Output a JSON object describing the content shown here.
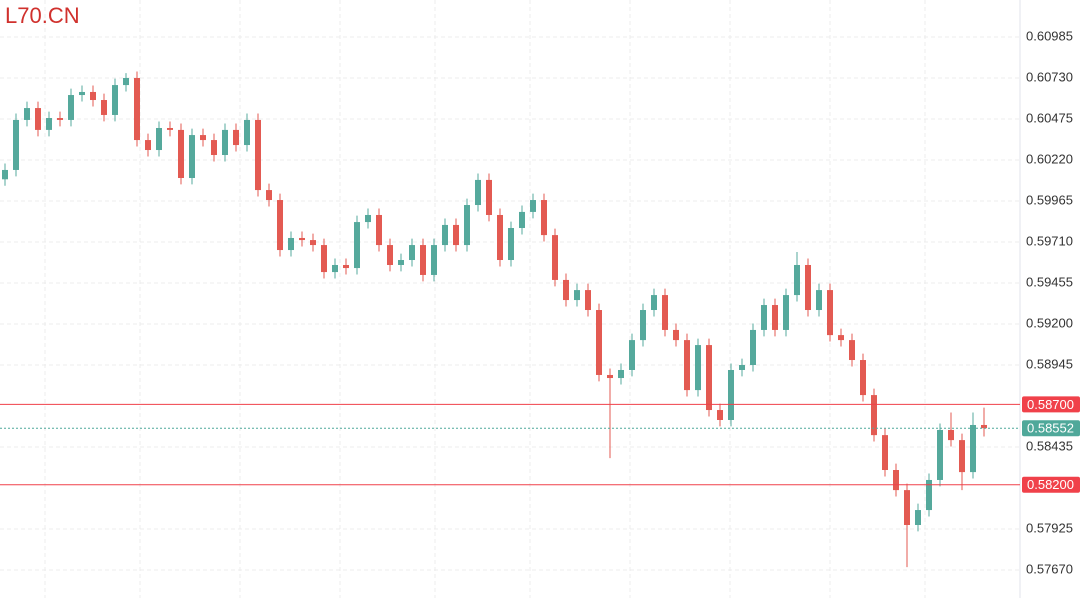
{
  "chart_data": {
    "type": "candlestick",
    "title": "L70.CN",
    "title_color": "#d0312d",
    "up_color": "#55a99c",
    "down_color": "#e35a52",
    "grid": true,
    "ylim": [
      0.57496,
      0.61215
    ],
    "yticks": [
      0.60985,
      {
        "value": 0.6073,
        "label": "0.60730"
      },
      0.60475,
      {
        "value": 0.6022,
        "label": "0.60220"
      },
      0.59965,
      {
        "value": 0.5971,
        "label": "0.59710"
      },
      0.59455,
      {
        "value": 0.592,
        "label": "0.59200"
      },
      0.58945,
      0.58435,
      0.57925,
      {
        "value": 0.5767,
        "label": "0.57670"
      }
    ],
    "hlines": [
      {
        "value": 0.587,
        "label": "0.58700",
        "color": "#f0414a",
        "style": "solid"
      },
      {
        "value": 0.58552,
        "color": "#4fa89a",
        "style": "dotted"
      },
      {
        "value": 0.582,
        "label": "0.58200",
        "color": "#f0414a",
        "style": "solid"
      }
    ],
    "open": [
      0.601,
      0.60158,
      0.60469,
      0.60543,
      0.60407,
      0.60481,
      0.60469,
      0.60624,
      0.60643,
      0.60593,
      0.605,
      0.60686,
      0.6073,
      0.60344,
      0.60282,
      0.60419,
      0.60407,
      0.60108,
      0.60375,
      0.60344,
      0.60251,
      0.60407,
      0.60313,
      0.60469,
      0.60033,
      0.59971,
      0.5966,
      0.59735,
      0.59722,
      0.59691,
      0.59523,
      0.59567,
      0.59548,
      0.59834,
      0.59878,
      0.59691,
      0.59567,
      0.59598,
      0.59691,
      0.59505,
      0.59691,
      0.59816,
      0.59691,
      0.5994,
      0.60096,
      0.59878,
      0.59598,
      0.59797,
      0.59897,
      0.59971,
      0.59753,
      0.59474,
      0.59349,
      0.59411,
      0.59287,
      0.58883,
      0.58864,
      0.58914,
      0.591,
      0.59287,
      0.5938,
      0.59163,
      0.591,
      0.58789,
      0.59069,
      0.58665,
      0.58603,
      0.58914,
      0.58945,
      0.59163,
      0.59318,
      0.59163,
      0.5938,
      0.59567,
      0.59287,
      0.59411,
      0.59131,
      0.591,
      0.58976,
      0.58758,
      0.58509,
      0.58292,
      0.58167,
      0.5795,
      0.58043,
      0.5823,
      0.58541,
      0.58478,
      0.58279,
      0.58572
    ],
    "high": [
      0.60198,
      0.60509,
      0.60583,
      0.60583,
      0.60521,
      0.60521,
      0.60664,
      0.60683,
      0.60683,
      0.60633,
      0.60726,
      0.6076,
      0.6077,
      0.60384,
      0.60459,
      0.60459,
      0.60447,
      0.60415,
      0.60415,
      0.60384,
      0.60447,
      0.60447,
      0.60509,
      0.60509,
      0.60073,
      0.60011,
      0.59775,
      0.59775,
      0.59762,
      0.59731,
      0.59607,
      0.59607,
      0.59874,
      0.59918,
      0.59918,
      0.59731,
      0.59638,
      0.59731,
      0.59731,
      0.59731,
      0.59856,
      0.59856,
      0.5998,
      0.60136,
      0.60136,
      0.59918,
      0.59837,
      0.59937,
      0.60011,
      0.60011,
      0.59793,
      0.59514,
      0.59451,
      0.59451,
      0.59327,
      0.58923,
      0.58954,
      0.5914,
      0.59327,
      0.5942,
      0.5942,
      0.59203,
      0.5914,
      0.59109,
      0.59109,
      0.58705,
      0.58954,
      0.58985,
      0.59203,
      0.59358,
      0.59358,
      0.5942,
      0.59648,
      0.59607,
      0.59451,
      0.59451,
      0.59171,
      0.5914,
      0.59016,
      0.58798,
      0.58549,
      0.58332,
      0.58207,
      0.58083,
      0.5827,
      0.58581,
      0.5865,
      0.58518,
      0.5865,
      0.5868
    ],
    "low": [
      0.6006,
      0.60118,
      0.60429,
      0.60367,
      0.60367,
      0.60429,
      0.60429,
      0.60584,
      0.60553,
      0.6046,
      0.6046,
      0.60646,
      0.60304,
      0.60242,
      0.60242,
      0.60367,
      0.60068,
      0.60068,
      0.60304,
      0.60211,
      0.60211,
      0.60273,
      0.60273,
      0.59993,
      0.59931,
      0.5962,
      0.5962,
      0.59682,
      0.59651,
      0.59483,
      0.59483,
      0.59508,
      0.59508,
      0.59794,
      0.59651,
      0.59527,
      0.59527,
      0.59558,
      0.59465,
      0.59465,
      0.59651,
      0.59651,
      0.59651,
      0.599,
      0.59838,
      0.59558,
      0.59558,
      0.59757,
      0.59857,
      0.59713,
      0.59434,
      0.59309,
      0.59309,
      0.59247,
      0.58843,
      0.58366,
      0.58824,
      0.58874,
      0.5906,
      0.59247,
      0.59123,
      0.5906,
      0.58749,
      0.58749,
      0.58625,
      0.58563,
      0.58563,
      0.58874,
      0.58905,
      0.59123,
      0.59123,
      0.59123,
      0.5934,
      0.59247,
      0.59247,
      0.59091,
      0.5906,
      0.58936,
      0.58718,
      0.58469,
      0.58252,
      0.58127,
      0.57688,
      0.5791,
      0.58003,
      0.5819,
      0.58438,
      0.58167,
      0.58239,
      0.585
    ],
    "close": [
      0.60158,
      0.60469,
      0.60543,
      0.60407,
      0.60481,
      0.60469,
      0.60624,
      0.60643,
      0.60593,
      0.605,
      0.60686,
      0.6073,
      0.60344,
      0.60282,
      0.60419,
      0.60407,
      0.60108,
      0.60375,
      0.60344,
      0.60251,
      0.60407,
      0.60313,
      0.60469,
      0.60033,
      0.59971,
      0.5966,
      0.59735,
      0.59722,
      0.59691,
      0.59523,
      0.59567,
      0.59548,
      0.59834,
      0.59878,
      0.59691,
      0.59567,
      0.59598,
      0.59691,
      0.59505,
      0.59691,
      0.59816,
      0.59691,
      0.5994,
      0.60096,
      0.59878,
      0.59598,
      0.59797,
      0.59897,
      0.59971,
      0.59753,
      0.59474,
      0.59349,
      0.59411,
      0.59287,
      0.58883,
      0.58864,
      0.58914,
      0.591,
      0.59287,
      0.5938,
      0.59163,
      0.591,
      0.58789,
      0.59069,
      0.58665,
      0.58603,
      0.58914,
      0.58945,
      0.59163,
      0.59318,
      0.59163,
      0.5938,
      0.59567,
      0.59287,
      0.59411,
      0.59131,
      0.591,
      0.58976,
      0.58758,
      0.58509,
      0.58292,
      0.58167,
      0.5795,
      0.58043,
      0.5823,
      0.58541,
      0.58478,
      0.58279,
      0.58572,
      0.58552
    ]
  }
}
